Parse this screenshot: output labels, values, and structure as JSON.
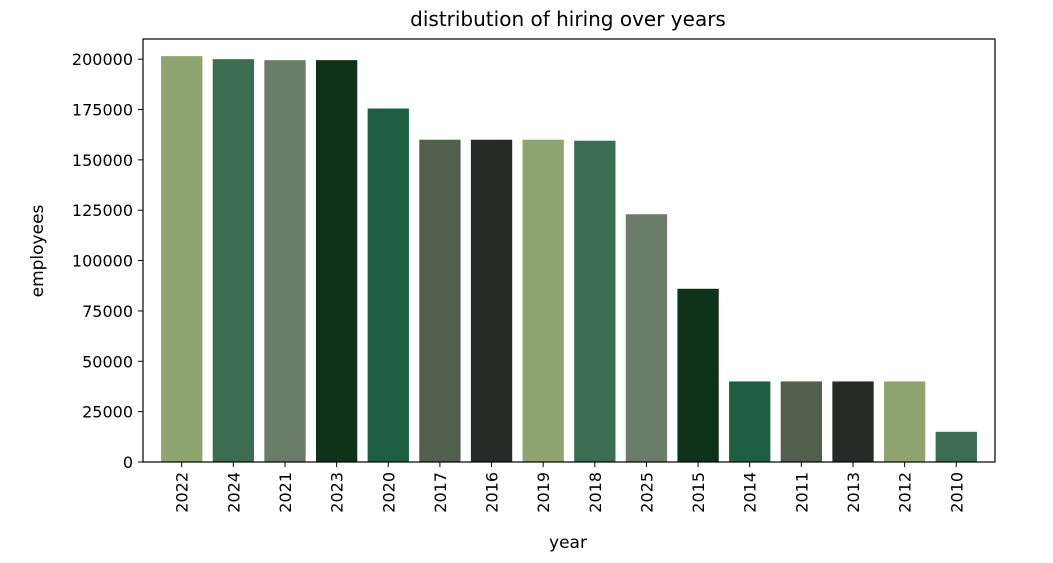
{
  "chart_data": {
    "type": "bar",
    "title": "distribution of hiring over years",
    "xlabel": "year",
    "ylabel": "employees",
    "ylim": [
      0,
      210000
    ],
    "yticks": [
      0,
      25000,
      50000,
      75000,
      100000,
      125000,
      150000,
      175000,
      200000
    ],
    "ytick_labels": [
      "0",
      "25000",
      "50000",
      "75000",
      "100000",
      "125000",
      "150000",
      "175000",
      "200000"
    ],
    "categories": [
      "2022",
      "2024",
      "2021",
      "2023",
      "2020",
      "2017",
      "2016",
      "2019",
      "2018",
      "2025",
      "2015",
      "2014",
      "2011",
      "2013",
      "2012",
      "2010"
    ],
    "values": [
      201500,
      200000,
      199500,
      199500,
      175500,
      160000,
      160000,
      160000,
      159500,
      123000,
      86000,
      40000,
      40000,
      40000,
      40000,
      15000
    ],
    "colors": [
      "#8fa571",
      "#3d6d51",
      "#697d69",
      "#0f3319",
      "#1e5f43",
      "#51604d",
      "#272b27",
      "#8fa571",
      "#3d6d51",
      "#697d69",
      "#0f3319",
      "#1e5f43",
      "#51604d",
      "#272b27",
      "#8fa571",
      "#3d6d51"
    ],
    "grid": false,
    "legend": "none"
  }
}
